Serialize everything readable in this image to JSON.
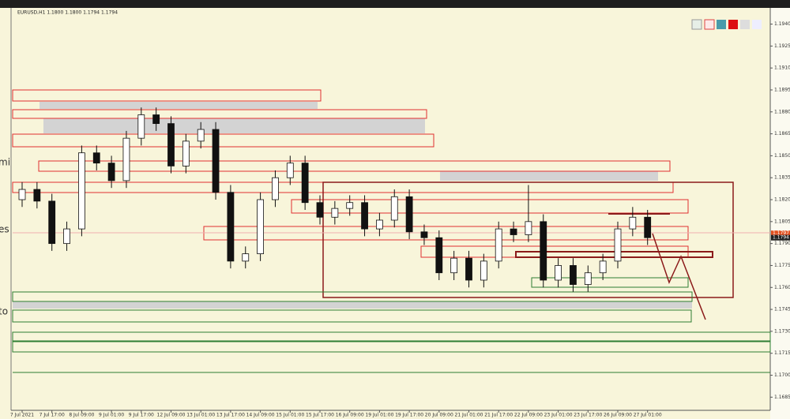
{
  "chart_data": {
    "type": "candlestick",
    "title": "EURUSD,H1  1.1800 1.1800 1.1794 1.1794",
    "side_fragments": [
      "mi",
      "es",
      "to"
    ],
    "categories": [
      "7 Jul 2021",
      null,
      "7 Jul 17:00",
      null,
      "8 Jul 09:00",
      null,
      "9 Jul 01:00",
      null,
      "9 Jul 17:00",
      null,
      "12 Jul 09:00",
      null,
      "13 Jul 01:00",
      null,
      "13 Jul 17:00",
      null,
      "14 Jul 09:00",
      null,
      "15 Jul 01:00",
      null,
      "15 Jul 17:00",
      null,
      "16 Jul 09:00",
      null,
      "19 Jul 01:00",
      null,
      "19 Jul 17:00",
      null,
      "20 Jul 09:00",
      null,
      "21 Jul 01:00",
      null,
      "21 Jul 17:00",
      null,
      "22 Jul 09:00",
      null,
      "23 Jul 01:00",
      null,
      "23 Jul 17:00",
      null,
      "26 Jul 09:00",
      null,
      "27 Jul 01:00"
    ],
    "open": [
      1.182,
      1.1827,
      1.1819,
      1.179,
      1.18,
      1.1852,
      1.1845,
      1.1833,
      1.1862,
      1.1878,
      1.1872,
      1.1843,
      1.186,
      1.1868,
      1.1825,
      1.1778,
      1.1783,
      1.182,
      1.1835,
      1.1845,
      1.1818,
      1.1808,
      1.1814,
      1.1818,
      1.18,
      1.1806,
      1.1822,
      1.1798,
      1.1794,
      1.177,
      1.178,
      1.1765,
      1.1778,
      1.18,
      1.1796,
      1.1805,
      1.1765,
      1.1775,
      1.1762,
      1.177,
      1.1778,
      1.18,
      1.1808
    ],
    "high": [
      1.1832,
      1.1832,
      1.1824,
      1.1805,
      1.1857,
      1.1857,
      1.185,
      1.1867,
      1.1883,
      1.1883,
      1.1877,
      1.1865,
      1.1873,
      1.1873,
      1.183,
      1.1788,
      1.1825,
      1.184,
      1.185,
      1.185,
      1.1823,
      1.1819,
      1.1823,
      1.1823,
      1.1811,
      1.1827,
      1.1827,
      1.1803,
      1.1799,
      1.1785,
      1.1785,
      1.1783,
      1.1805,
      1.1805,
      1.183,
      1.181,
      1.178,
      1.178,
      1.1775,
      1.1783,
      1.1805,
      1.1815,
      1.1813
    ],
    "low": [
      1.1815,
      1.1814,
      1.1785,
      1.1785,
      1.1795,
      1.184,
      1.1828,
      1.1828,
      1.1857,
      1.1867,
      1.1838,
      1.1838,
      1.1855,
      1.182,
      1.1773,
      1.1773,
      1.1778,
      1.1815,
      1.183,
      1.1813,
      1.1803,
      1.1803,
      1.1809,
      1.1795,
      1.1795,
      1.1801,
      1.1793,
      1.1789,
      1.1765,
      1.1765,
      1.176,
      1.176,
      1.1773,
      1.1791,
      1.1791,
      1.176,
      1.176,
      1.1757,
      1.1757,
      1.1765,
      1.1773,
      1.1795,
      1.1789
    ],
    "close": [
      1.1827,
      1.1819,
      1.179,
      1.18,
      1.1852,
      1.1845,
      1.1833,
      1.1862,
      1.1878,
      1.1872,
      1.1843,
      1.186,
      1.1868,
      1.1825,
      1.1778,
      1.1783,
      1.182,
      1.1835,
      1.1845,
      1.1818,
      1.1808,
      1.1814,
      1.1818,
      1.18,
      1.1806,
      1.1822,
      1.1798,
      1.1794,
      1.177,
      1.178,
      1.1765,
      1.1778,
      1.18,
      1.1796,
      1.1805,
      1.1765,
      1.1775,
      1.1762,
      1.177,
      1.1778,
      1.18,
      1.1808,
      1.1794
    ],
    "up_color": "#ffffff",
    "down_color": "#111111",
    "outline_color": "#111111",
    "ylim": [
      1.1676,
      1.195
    ],
    "yticks": [
      {
        "value": 1.194,
        "label": "1.1940"
      },
      1.1925,
      {
        "value": 1.191,
        "label": "1.1910"
      },
      1.1895,
      {
        "value": 1.188,
        "label": "1.1880"
      },
      1.1865,
      {
        "value": 1.185,
        "label": "1.1850"
      },
      1.1835,
      {
        "value": 1.182,
        "label": "1.1820"
      },
      1.1805,
      {
        "value": 1.179,
        "label": "1.1790"
      },
      1.1775,
      {
        "value": 1.176,
        "label": "1.1760"
      },
      1.1745,
      {
        "value": 1.173,
        "label": "1.1730"
      },
      1.1715,
      {
        "value": 1.17,
        "label": "1.1700"
      },
      1.1685
    ],
    "price_labels": [
      {
        "value": 1.1797,
        "color": "#e2501f"
      },
      {
        "value": 1.1794,
        "color": "#222222"
      }
    ],
    "grid": false
  }
}
